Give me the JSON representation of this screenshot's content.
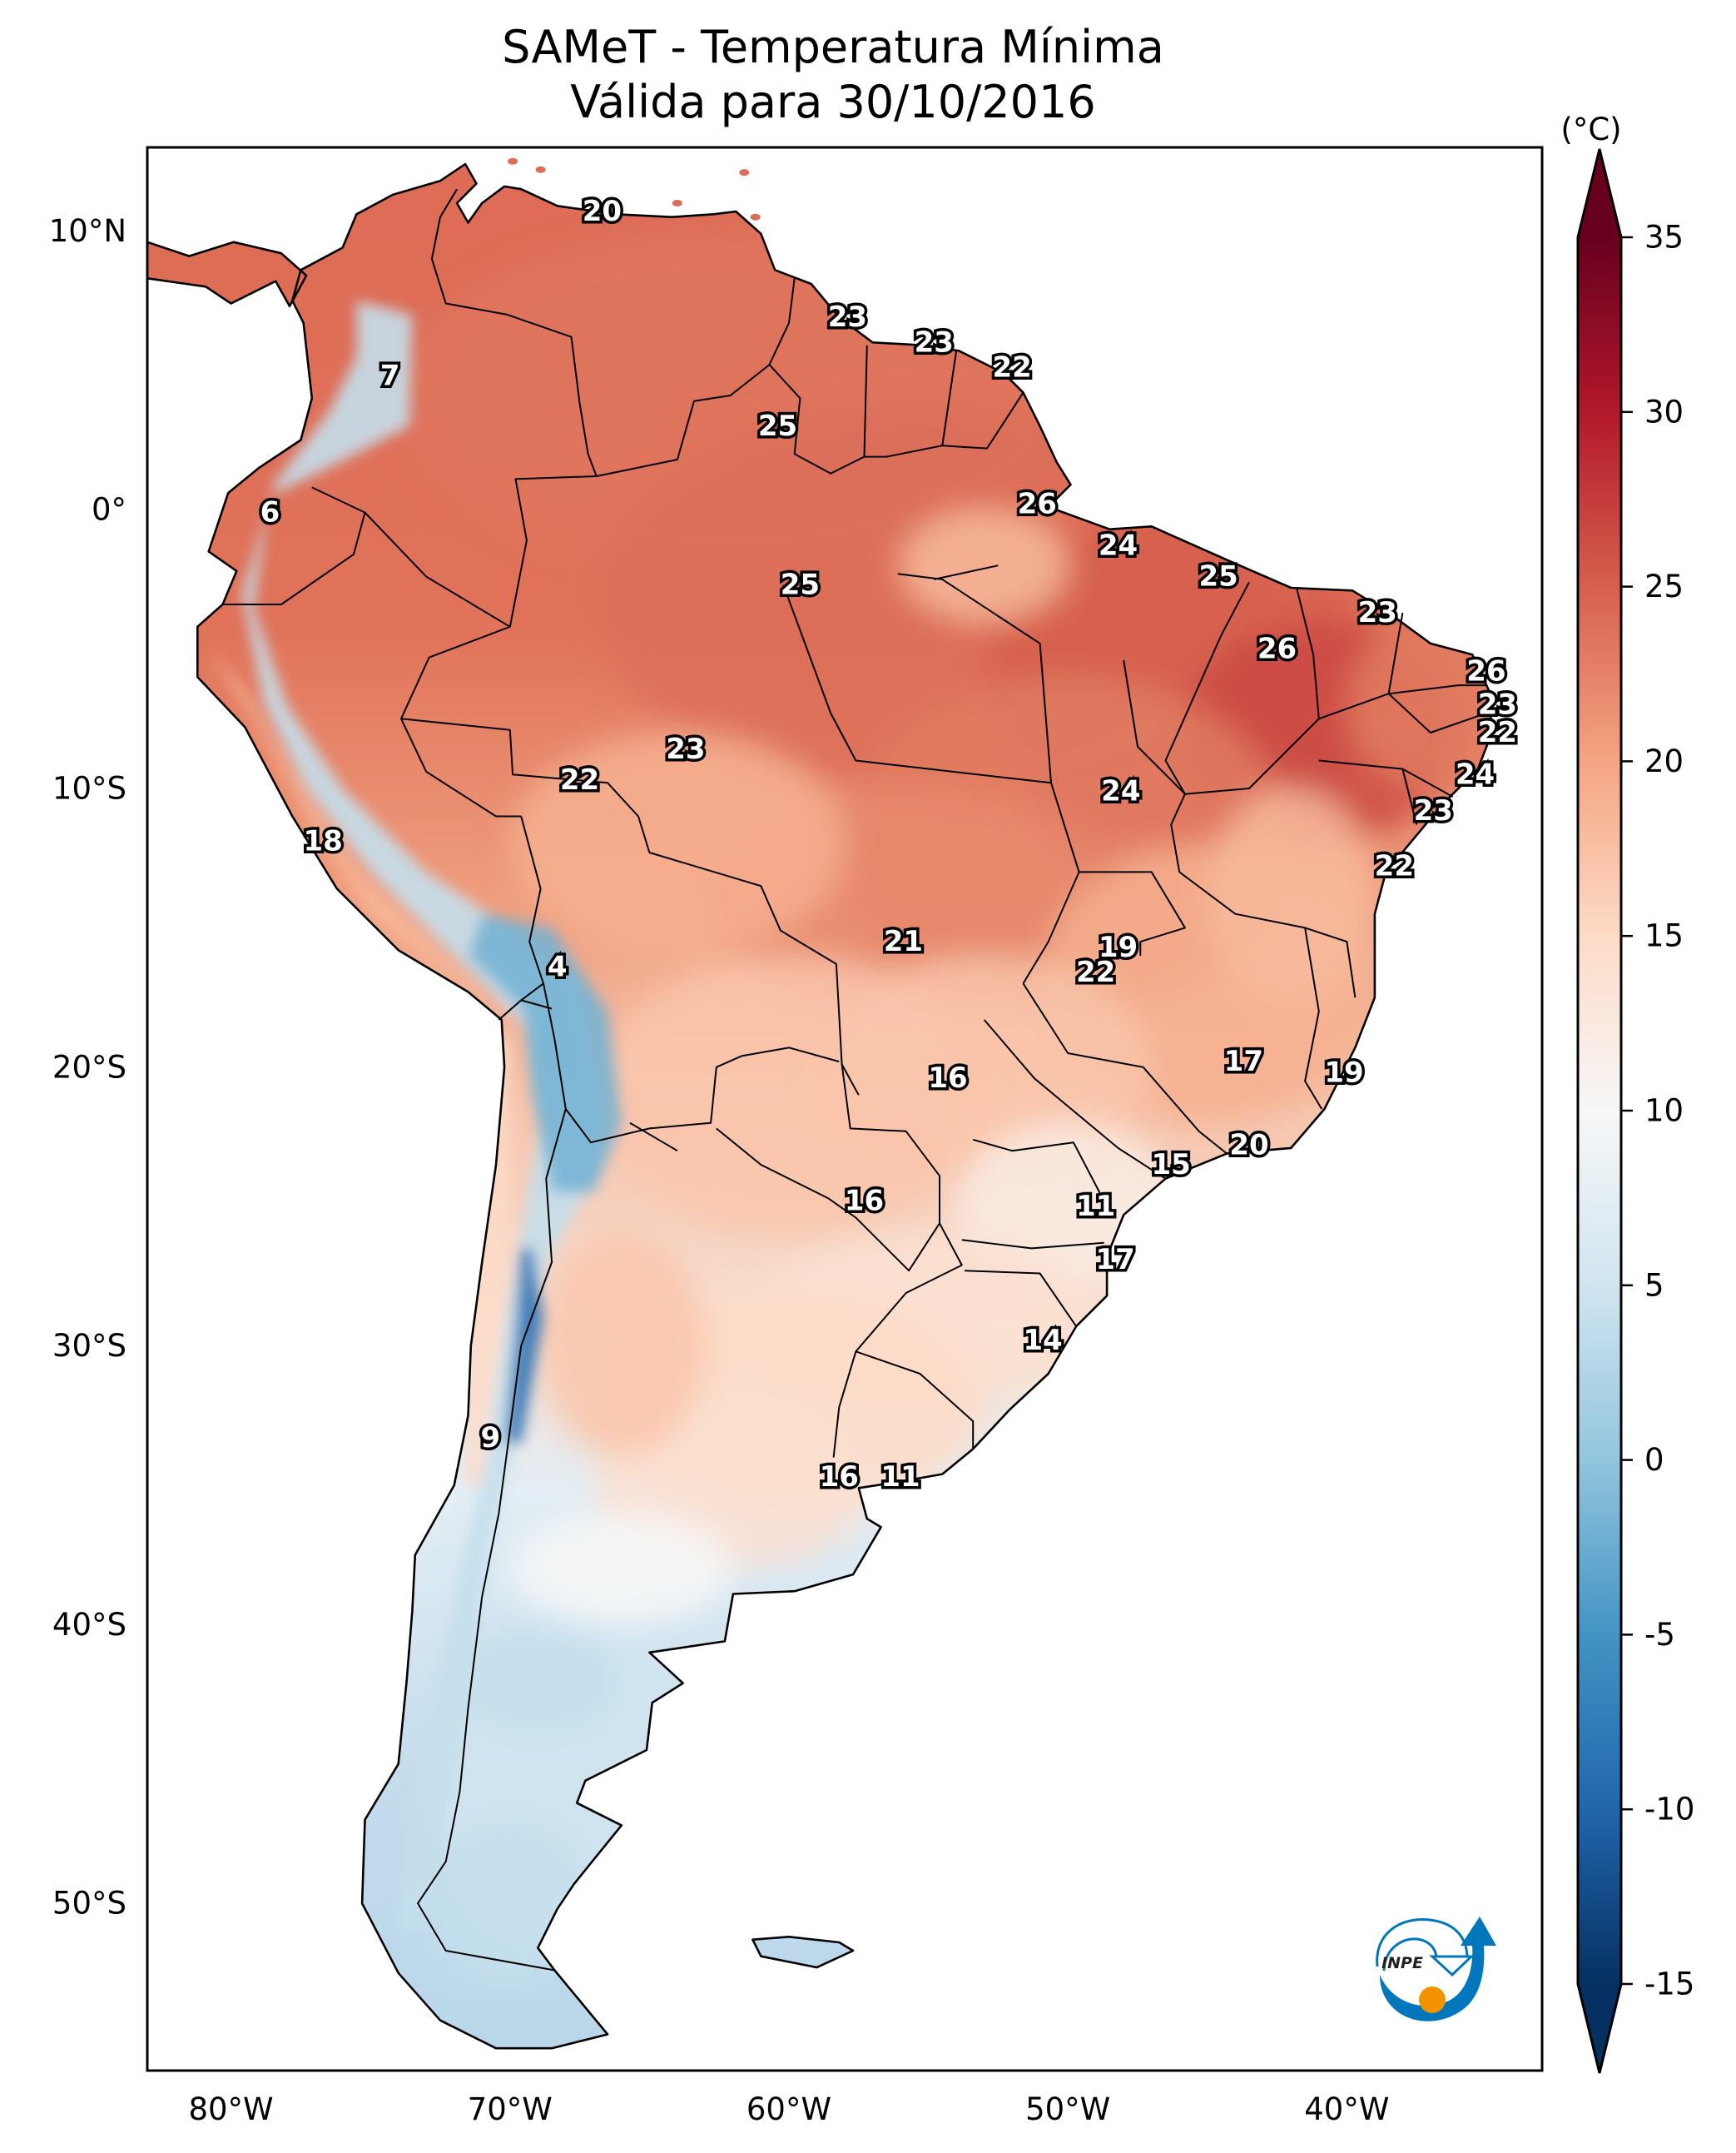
{
  "chart_data": {
    "type": "heatmap",
    "title": "SAMeT - Temperatura Mínima",
    "subtitle": "Válida para 30/10/2016",
    "xlabel": "",
    "ylabel": "",
    "colorbar": {
      "label": "(°C)",
      "colormap": "RdBu_r",
      "range": [
        -15,
        35
      ],
      "extend": "both",
      "ticks": [
        -15,
        -10,
        -5,
        0,
        5,
        10,
        15,
        20,
        25,
        30,
        35
      ],
      "tick_labels": [
        "-15",
        "-10",
        "-5",
        "0",
        "5",
        "10",
        "15",
        "20",
        "25",
        "30",
        "35"
      ]
    },
    "extent": {
      "lon": [
        -83,
        -33
      ],
      "lat": [
        -56,
        13
      ]
    },
    "x_ticks": [
      {
        "value": -80,
        "label": "80°W"
      },
      {
        "value": -70,
        "label": "70°W"
      },
      {
        "value": -60,
        "label": "60°W"
      },
      {
        "value": -50,
        "label": "50°W"
      },
      {
        "value": -40,
        "label": "40°W"
      }
    ],
    "y_ticks": [
      {
        "value": 10,
        "label": "10°N"
      },
      {
        "value": 0,
        "label": "0°"
      },
      {
        "value": -10,
        "label": "10°S"
      },
      {
        "value": -20,
        "label": "20°S"
      },
      {
        "value": -30,
        "label": "30°S"
      },
      {
        "value": -40,
        "label": "40°S"
      },
      {
        "value": -50,
        "label": "50°S"
      }
    ],
    "grid": false,
    "legend": "colorbar-right",
    "point_labels": [
      {
        "lon": -66.7,
        "lat": 10.7,
        "value": 20
      },
      {
        "lon": -74.3,
        "lat": 4.8,
        "value": 7
      },
      {
        "lon": -78.6,
        "lat": -0.1,
        "value": 6
      },
      {
        "lon": -60.4,
        "lat": 3.0,
        "value": 25
      },
      {
        "lon": -57.9,
        "lat": 6.9,
        "value": 23
      },
      {
        "lon": -54.8,
        "lat": 6.0,
        "value": 23
      },
      {
        "lon": -52.0,
        "lat": 5.1,
        "value": 22
      },
      {
        "lon": -51.1,
        "lat": 0.2,
        "value": 26
      },
      {
        "lon": -48.2,
        "lat": -1.3,
        "value": 24
      },
      {
        "lon": -44.6,
        "lat": -2.4,
        "value": 25
      },
      {
        "lon": -59.6,
        "lat": -2.7,
        "value": 25
      },
      {
        "lon": -38.9,
        "lat": -3.7,
        "value": 23
      },
      {
        "lon": -42.5,
        "lat": -5.0,
        "value": 26
      },
      {
        "lon": -35.0,
        "lat": -5.8,
        "value": 26
      },
      {
        "lon": -34.6,
        "lat": -7.0,
        "value": 23
      },
      {
        "lon": -34.6,
        "lat": -8.0,
        "value": 22
      },
      {
        "lon": -35.4,
        "lat": -9.5,
        "value": 24
      },
      {
        "lon": -36.9,
        "lat": -10.8,
        "value": 23
      },
      {
        "lon": -38.3,
        "lat": -12.8,
        "value": 22
      },
      {
        "lon": -63.7,
        "lat": -8.6,
        "value": 23
      },
      {
        "lon": -67.5,
        "lat": -9.7,
        "value": 22
      },
      {
        "lon": -48.1,
        "lat": -10.1,
        "value": 24
      },
      {
        "lon": -76.7,
        "lat": -11.9,
        "value": 18
      },
      {
        "lon": -68.3,
        "lat": -16.4,
        "value": 4
      },
      {
        "lon": -55.9,
        "lat": -15.5,
        "value": 21
      },
      {
        "lon": -48.2,
        "lat": -15.7,
        "value": 19
      },
      {
        "lon": -49.0,
        "lat": -16.6,
        "value": 22
      },
      {
        "lon": -54.3,
        "lat": -20.4,
        "value": 16
      },
      {
        "lon": -43.7,
        "lat": -19.8,
        "value": 17
      },
      {
        "lon": -40.1,
        "lat": -20.2,
        "value": 19
      },
      {
        "lon": -43.5,
        "lat": -22.8,
        "value": 20
      },
      {
        "lon": -46.3,
        "lat": -23.5,
        "value": 15
      },
      {
        "lon": -57.3,
        "lat": -24.8,
        "value": 16
      },
      {
        "lon": -49.0,
        "lat": -25.0,
        "value": 11
      },
      {
        "lon": -48.3,
        "lat": -26.9,
        "value": 17
      },
      {
        "lon": -50.9,
        "lat": -29.8,
        "value": 14
      },
      {
        "lon": -70.7,
        "lat": -33.3,
        "value": 9
      },
      {
        "lon": -58.2,
        "lat": -34.7,
        "value": 16
      },
      {
        "lon": -56.0,
        "lat": -34.7,
        "value": 11
      }
    ]
  },
  "logo": {
    "text": "INPE",
    "colors": {
      "primary": "#0077bd",
      "accent": "#f39200"
    }
  }
}
